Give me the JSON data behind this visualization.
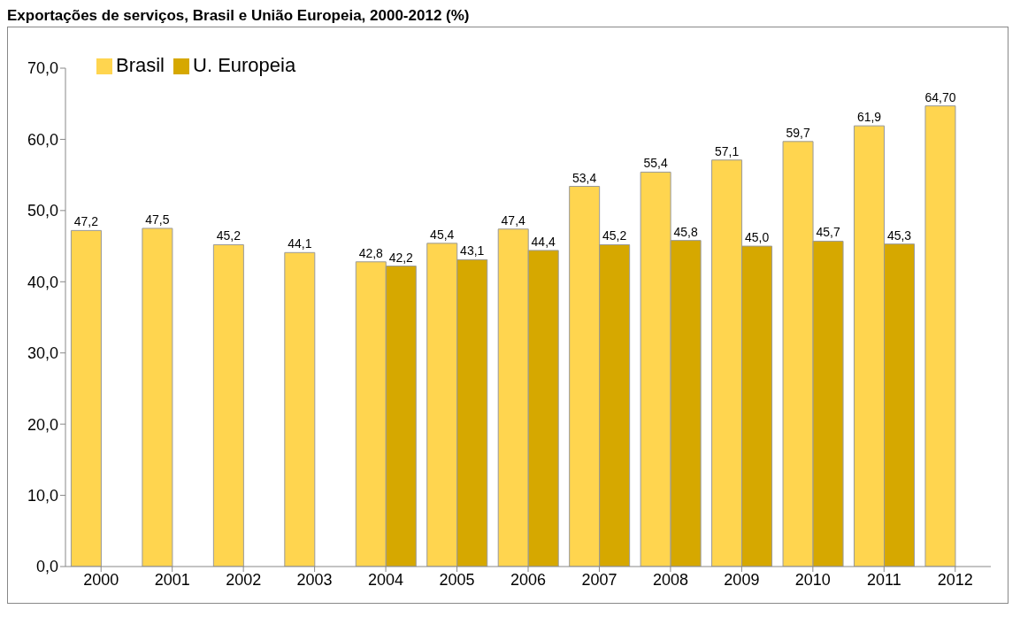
{
  "chart_data": {
    "type": "bar",
    "title": "Exportações de serviços, Brasil e União Europeia, 2000-2012 (%)",
    "categories": [
      "2000",
      "2001",
      "2002",
      "2003",
      "2004",
      "2005",
      "2006",
      "2007",
      "2008",
      "2009",
      "2010",
      "2011",
      "2012"
    ],
    "series": [
      {
        "name": "Brasil",
        "color": "#ffd54f",
        "values": [
          47.2,
          47.5,
          45.2,
          44.1,
          42.8,
          45.4,
          47.4,
          53.4,
          55.4,
          57.1,
          59.7,
          61.9,
          64.7
        ],
        "value_labels": [
          "47,2",
          "47,5",
          "45,2",
          "44,1",
          "42,8",
          "45,4",
          "47,4",
          "53,4",
          "55,4",
          "57,1",
          "59,7",
          "61,9",
          "64,70"
        ]
      },
      {
        "name": "U. Europeia",
        "color": "#d6a800",
        "values": [
          null,
          null,
          null,
          null,
          42.2,
          43.1,
          44.4,
          45.2,
          45.8,
          45.0,
          45.7,
          45.3,
          null
        ],
        "value_labels": [
          null,
          null,
          null,
          null,
          "42,2",
          "43,1",
          "44,4",
          "45,2",
          "45,8",
          "45,0",
          "45,7",
          "45,3",
          null
        ]
      }
    ],
    "ylim": [
      0,
      70
    ],
    "yticks": [
      {
        "value": 0,
        "label": "0,0"
      },
      {
        "value": 10,
        "label": "10,0"
      },
      {
        "value": 20,
        "label": "20,0"
      },
      {
        "value": 30,
        "label": "30,0"
      },
      {
        "value": 40,
        "label": "40,0"
      },
      {
        "value": 50,
        "label": "50,0"
      },
      {
        "value": 60,
        "label": "60,0"
      },
      {
        "value": 70,
        "label": "70,0"
      }
    ],
    "legend": "top left"
  }
}
